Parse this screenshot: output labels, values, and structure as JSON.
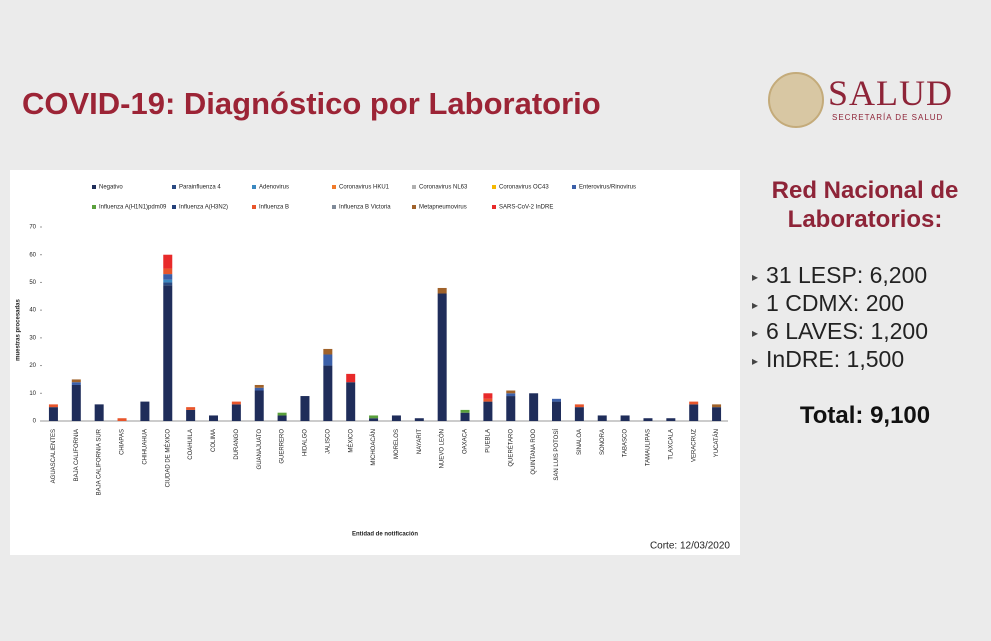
{
  "slide": {
    "title": "COVID-19: Diagnóstico por Laboratorio",
    "logo": {
      "name": "SALUD",
      "subtitle": "SECRETARÍA DE SALUD"
    },
    "panel": {
      "heading": "Red Nacional de Laboratorios:",
      "items": [
        "31 LESP: 6,200",
        "1 CDMX: 200",
        "6 LAVES: 1,200",
        "InDRE: 1,500"
      ],
      "total": "Total: 9,100"
    }
  },
  "chart_data": {
    "type": "stacked-bar",
    "y_label": "muestras procesadas",
    "x_label": "Entidad de notificación",
    "note": "Corte: 12/03/2020",
    "ylim": [
      0,
      70
    ],
    "yticks": [
      0,
      10,
      20,
      30,
      40,
      50,
      60,
      70
    ],
    "categories": [
      "AGUASCALIENTES",
      "BAJA CALIFORNIA",
      "BAJA CALIFORNIA SUR",
      "CHIAPAS",
      "CHIHUAHUA",
      "CIUDAD DE MÉXICO",
      "COAHUILA",
      "COLIMA",
      "DURANGO",
      "GUANAJUATO",
      "GUERRERO",
      "HIDALGO",
      "JALISCO",
      "MÉXICO",
      "MICHOACÁN",
      "MORELOS",
      "NAYARIT",
      "NUEVO LEÓN",
      "OAXACA",
      "PUEBLA",
      "QUERÉTARO",
      "QUINTANA ROO",
      "SAN LUIS POTOSÍ",
      "SINALOA",
      "SONORA",
      "TABASCO",
      "TAMAULIPAS",
      "TLAXCALA",
      "VERACRUZ",
      "YUCATÁN"
    ],
    "series": [
      {
        "name": "Negativo",
        "color": "#1f2d5a",
        "values": [
          5,
          13,
          6,
          0,
          7,
          49,
          4,
          2,
          6,
          11,
          2,
          9,
          20,
          14,
          1,
          2,
          1,
          46,
          3,
          7,
          9,
          10,
          7,
          5,
          2,
          2,
          1,
          1,
          6,
          5
        ]
      },
      {
        "name": "Parainfluenza 4",
        "color": "#2a4a82",
        "values": [
          0,
          0,
          0,
          0,
          0,
          1,
          0,
          0,
          0,
          0,
          0,
          0,
          0,
          0,
          0,
          0,
          0,
          0,
          0,
          0,
          0,
          0,
          0,
          0,
          0,
          0,
          0,
          0,
          0,
          0
        ]
      },
      {
        "name": "Adenovirus",
        "color": "#3a88c0",
        "values": [
          0,
          0,
          0,
          0,
          0,
          1,
          0,
          0,
          0,
          0,
          0,
          0,
          0,
          0,
          0,
          0,
          0,
          0,
          0,
          0,
          0,
          0,
          0,
          0,
          0,
          0,
          0,
          0,
          0,
          0
        ]
      },
      {
        "name": "Coronavirus HKU1",
        "color": "#f07a2a",
        "values": [
          0,
          0,
          0,
          0,
          0,
          0,
          0,
          0,
          0,
          0,
          0,
          0,
          0,
          0,
          0,
          0,
          0,
          0,
          0,
          0,
          0,
          0,
          0,
          0,
          0,
          0,
          0,
          0,
          0,
          0
        ]
      },
      {
        "name": "Coronavirus NL63",
        "color": "#b0b0b0",
        "values": [
          0,
          0,
          0,
          0,
          0,
          0,
          0,
          0,
          0,
          0,
          0,
          0,
          0,
          0,
          0,
          0,
          0,
          0,
          0,
          0,
          0,
          0,
          0,
          0,
          0,
          0,
          0,
          0,
          0,
          0
        ]
      },
      {
        "name": "Coronavirus OC43",
        "color": "#f5b800",
        "values": [
          0,
          0,
          0,
          0,
          0,
          0,
          0,
          0,
          0,
          0,
          0,
          0,
          0,
          0,
          0,
          0,
          0,
          0,
          0,
          0,
          0,
          0,
          0,
          0,
          0,
          0,
          0,
          0,
          0,
          0
        ]
      },
      {
        "name": "Enterovirus/Rinovirus",
        "color": "#3b5fa8",
        "values": [
          0,
          1,
          0,
          0,
          0,
          2,
          0,
          0,
          0,
          1,
          0,
          0,
          4,
          0,
          0,
          0,
          0,
          0,
          0,
          0,
          1,
          0,
          1,
          0,
          0,
          0,
          0,
          0,
          0,
          0
        ]
      },
      {
        "name": "Influenza A(H1N1)pdm09",
        "color": "#5aa03c",
        "values": [
          0,
          0,
          0,
          0,
          0,
          0,
          0,
          0,
          0,
          0,
          1,
          0,
          0,
          0,
          1,
          0,
          0,
          0,
          1,
          0,
          0,
          0,
          0,
          0,
          0,
          0,
          0,
          0,
          0,
          0
        ]
      },
      {
        "name": "Influenza A(H3N2)",
        "color": "#24407a",
        "values": [
          0,
          0,
          0,
          0,
          0,
          0,
          0,
          0,
          0,
          0,
          0,
          0,
          0,
          0,
          0,
          0,
          0,
          0,
          0,
          0,
          0,
          0,
          0,
          0,
          0,
          0,
          0,
          0,
          0,
          0
        ]
      },
      {
        "name": "Influenza B",
        "color": "#e8552b",
        "values": [
          1,
          0,
          0,
          1,
          0,
          2,
          1,
          0,
          1,
          0,
          0,
          0,
          0,
          0,
          0,
          0,
          0,
          0,
          0,
          1,
          0,
          0,
          0,
          1,
          0,
          0,
          0,
          0,
          1,
          0
        ]
      },
      {
        "name": "Influenza B Victoria",
        "color": "#7f8a99",
        "values": [
          0,
          0,
          0,
          0,
          0,
          0,
          0,
          0,
          0,
          0,
          0,
          0,
          0,
          0,
          0,
          0,
          0,
          0,
          0,
          0,
          0,
          0,
          0,
          0,
          0,
          0,
          0,
          0,
          0,
          0
        ]
      },
      {
        "name": "Metapneumovirus",
        "color": "#a0622a",
        "values": [
          0,
          1,
          0,
          0,
          0,
          0,
          0,
          0,
          0,
          1,
          0,
          0,
          2,
          0,
          0,
          0,
          0,
          2,
          0,
          0,
          1,
          0,
          0,
          0,
          0,
          0,
          0,
          0,
          0,
          1
        ]
      },
      {
        "name": "SARS-CoV-2 InDRE",
        "color": "#e82a2a",
        "values": [
          0,
          0,
          0,
          0,
          0,
          5,
          0,
          0,
          0,
          0,
          0,
          0,
          0,
          3,
          0,
          0,
          0,
          0,
          0,
          2,
          0,
          0,
          0,
          0,
          0,
          0,
          0,
          0,
          0,
          0
        ]
      }
    ]
  }
}
